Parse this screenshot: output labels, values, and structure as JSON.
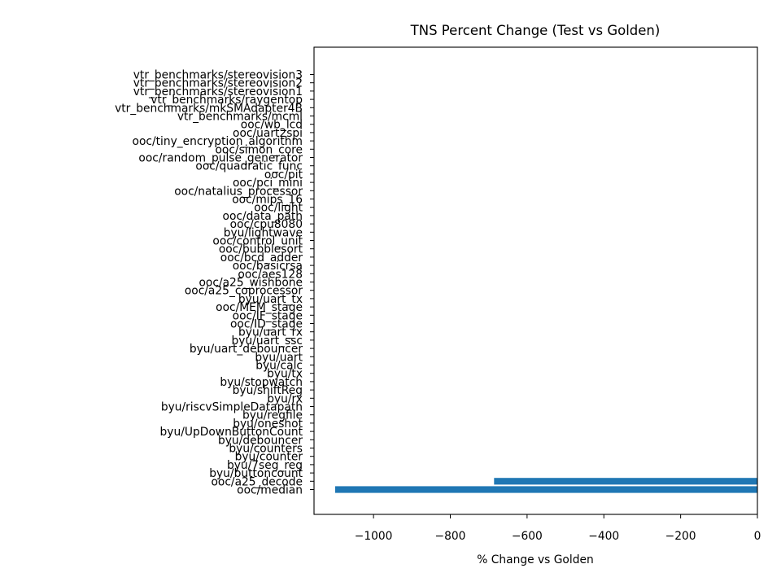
{
  "chart_data": {
    "type": "bar",
    "orientation": "horizontal",
    "title": "TNS Percent Change (Test vs Golden)",
    "xlabel": "% Change vs Golden",
    "ylabel": "",
    "xlim": [
      -1155,
      0
    ],
    "xticks": [
      -1000,
      -800,
      -600,
      -400,
      -200,
      0
    ],
    "xtick_labels": [
      "−1000",
      "−800",
      "−600",
      "−400",
      "−200",
      "0"
    ],
    "grid": false,
    "bar_color": "#1f77b4",
    "categories": [
      "ooc/median",
      "ooc/a25_decode",
      "byu/buttoncount",
      "byu/7seg_reg",
      "byu/counter",
      "byu/counters",
      "byu/debouncer",
      "byu/UpDownButtonCount",
      "byu/oneshot",
      "byu/regfile",
      "byu/riscvSimpleDatapath",
      "byu/rx",
      "byu/shiftReg",
      "byu/stopwatch",
      "byu/tx",
      "byu/calc",
      "byu/uart",
      "byu/uart_debouncer",
      "byu/uart_ssc",
      "byu/uart_rx",
      "ooc/ID_stage",
      "ooc/IF_stage",
      "ooc/MEM_stage",
      "byu/uart_tx",
      "ooc/a25_coprocessor",
      "ooc/a25_wishbone",
      "ooc/aes128",
      "ooc/basicrsa",
      "ooc/bcd_adder",
      "ooc/bubblesort",
      "ooc/control_unit",
      "byu/lightwave",
      "ooc/cpu8080",
      "ooc/data_path",
      "ooc/light",
      "ooc/mips_16",
      "ooc/natalius_processor",
      "ooc/pci_mini",
      "ooc/pit",
      "ooc/quadratic_func",
      "ooc/random_pulse_generator",
      "ooc/simon_core",
      "ooc/tiny_encryption_algorithm",
      "ooc/uart2spi",
      "ooc/wb_lcd",
      "vtr_benchmarks/mcml",
      "vtr_benchmarks/mkSMAdapter4B",
      "vtr_benchmarks/raygentop",
      "vtr_benchmarks/stereovision1",
      "vtr_benchmarks/stereovision2",
      "vtr_benchmarks/stereovision3"
    ],
    "values": [
      -1100,
      -686,
      0,
      0,
      0,
      0,
      0,
      0,
      0,
      0,
      0,
      0,
      0,
      0,
      0,
      0,
      0,
      0,
      0,
      0,
      0,
      0,
      0,
      0,
      0,
      0,
      0,
      0,
      0,
      0,
      0,
      0,
      0,
      0,
      0,
      0,
      0,
      0,
      0,
      0,
      0,
      0,
      0,
      0,
      0,
      0,
      0,
      0,
      0,
      0,
      0
    ]
  }
}
